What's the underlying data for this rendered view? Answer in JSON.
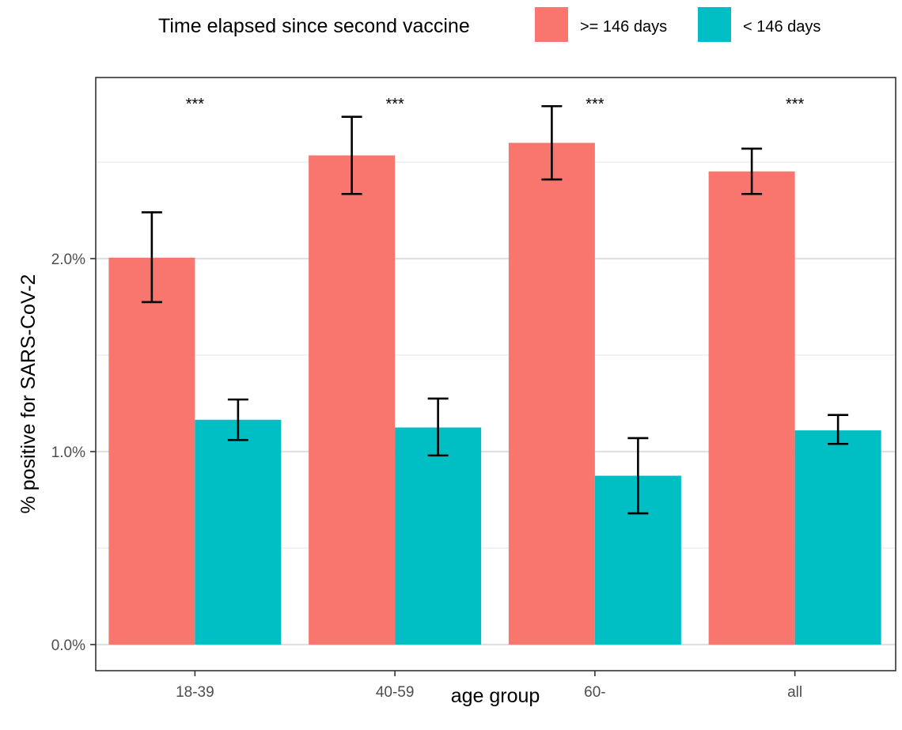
{
  "chart_data": {
    "type": "bar",
    "xlabel": "age group",
    "ylabel": "% positive for SARS-CoV-2",
    "ylim": [
      0,
      0.0285
    ],
    "yticks": [
      {
        "value": 0.0,
        "label": "0.0%"
      },
      {
        "value": 0.01,
        "label": "1.0%"
      },
      {
        "value": 0.02,
        "label": "2.0%"
      }
    ],
    "minor_gridlines": [
      0.005,
      0.015,
      0.025
    ],
    "categories": [
      "18-39",
      "40-59",
      "60-",
      "all"
    ],
    "legend": {
      "title": "Time elapsed since second vaccine",
      "position": "top"
    },
    "series": [
      {
        "name": ">= 146 days",
        "color": "#F8766D",
        "values": [
          0.02005,
          0.02535,
          0.026,
          0.02452
        ],
        "error_low": [
          0.01775,
          0.02335,
          0.0241,
          0.02335
        ],
        "error_high": [
          0.0224,
          0.02735,
          0.0279,
          0.0257
        ]
      },
      {
        "name": "< 146 days",
        "color": "#00BFC4",
        "values": [
          0.01165,
          0.01125,
          0.00875,
          0.0111
        ],
        "error_low": [
          0.0106,
          0.0098,
          0.0068,
          0.0104
        ],
        "error_high": [
          0.0127,
          0.01275,
          0.0107,
          0.0119
        ]
      }
    ],
    "annotations": [
      "***",
      "***",
      "***",
      "***"
    ],
    "grid": true
  }
}
